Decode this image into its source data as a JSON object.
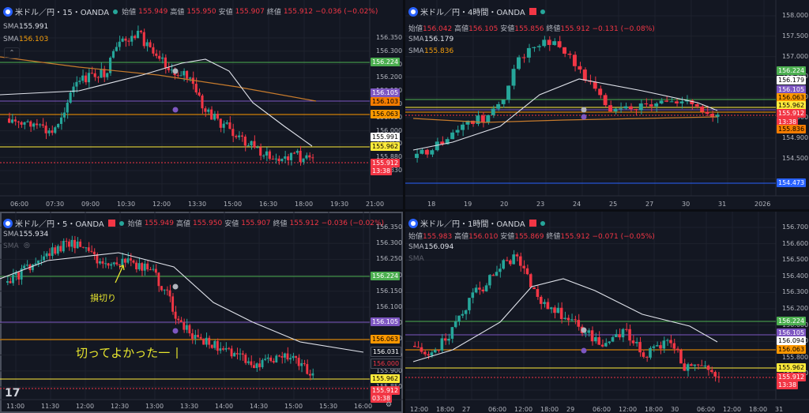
{
  "panels": [
    {
      "symbol": "米ドル／円・15・OANDA",
      "ohlc_row": 1,
      "open_label": "始値",
      "open": "155.949",
      "high_label": "高値",
      "high": "155.950",
      "low_label": "安値",
      "low": "155.907",
      "close_label": "終値",
      "close": "155.912",
      "change": "−0.036 (−0.02%)",
      "sma1_label": "SMA",
      "sma1_value": "155.991",
      "sma2_label": "SMA",
      "sma2_value": "156.103",
      "price_ticks": [
        "156.350",
        "156.300",
        "156.250",
        "156.200",
        "156.150",
        "156.100",
        "156.050",
        "156.000",
        "155.930",
        "155.880",
        "155.830"
      ],
      "time_ticks": [
        "06:00",
        "07:30",
        "09:00",
        "10:30",
        "12:00",
        "13:30",
        "15:00",
        "16:30",
        "18:00",
        "19:30",
        "21:00"
      ],
      "tags": [
        {
          "text": "156.224",
          "bg": "#4caf50",
          "fg": "#ffffff"
        },
        {
          "text": "156.105",
          "bg": "#7e57c2",
          "fg": "#ffffff"
        },
        {
          "text": "156.103",
          "bg": "#f57c00",
          "fg": "#000000"
        },
        {
          "text": "156.063",
          "bg": "#ff9800",
          "fg": "#000000"
        },
        {
          "text": "155.991",
          "bg": "#ffffff",
          "fg": "#000000"
        },
        {
          "text": "155.962",
          "bg": "#ffeb3b",
          "fg": "#000000"
        },
        {
          "text": "155.912",
          "bg": "#f23645",
          "fg": "#ffffff"
        },
        {
          "text": "13:38",
          "bg": "#f23645",
          "fg": "#ffffff"
        }
      ]
    },
    {
      "symbol": "米ドル／円・4時間・OANDA",
      "open_label": "始値",
      "open": "156.042",
      "high_label": "高値",
      "high": "156.105",
      "low_label": "安値",
      "low": "155.856",
      "close_label": "終値",
      "close": "155.912",
      "change": "−0.131 (−0.08%)",
      "sma1_label": "SMA",
      "sma1_value": "156.179",
      "sma2_label": "SMA",
      "sma2_value": "155.836",
      "price_ticks": [
        "158.000",
        "157.500",
        "157.000",
        "156.500",
        "156.000",
        "155.300",
        "154.900",
        "154.500"
      ],
      "time_ticks": [
        "18",
        "19",
        "20",
        "23",
        "24",
        "25",
        "27",
        "30",
        "31",
        "2026"
      ],
      "tags": [
        {
          "text": "156.224",
          "bg": "#4caf50",
          "fg": "#ffffff"
        },
        {
          "text": "156.179",
          "bg": "#ffffff",
          "fg": "#000000"
        },
        {
          "text": "156.105",
          "bg": "#7e57c2",
          "fg": "#ffffff"
        },
        {
          "text": "156.063",
          "bg": "#ff9800",
          "fg": "#000000"
        },
        {
          "text": "155.962",
          "bg": "#ffeb3b",
          "fg": "#000000"
        },
        {
          "text": "155.912",
          "bg": "#f23645",
          "fg": "#ffffff"
        },
        {
          "text": "13:38",
          "bg": "#f23645",
          "fg": "#ffffff"
        },
        {
          "text": "155.836",
          "bg": "#f57c00",
          "fg": "#000000"
        },
        {
          "text": "154.473",
          "bg": "#2962ff",
          "fg": "#ffffff"
        }
      ]
    },
    {
      "symbol": "米ドル／円・5・OANDA",
      "open_label": "始値",
      "open": "155.949",
      "high_label": "高値",
      "high": "155.950",
      "low_label": "安値",
      "low": "155.907",
      "close_label": "終値",
      "close": "155.912",
      "change": "−0.036 (−0.02%)",
      "sma1_label": "SMA",
      "sma1_value": "155.934",
      "sma2_label": "SMA",
      "price_ticks": [
        "156.350",
        "156.300",
        "156.250",
        "156.200",
        "156.150",
        "156.100",
        "156.050",
        "156.000",
        "155.950",
        "155.900",
        "155.850"
      ],
      "time_ticks": [
        "11:00",
        "11:30",
        "12:00",
        "12:30",
        "13:00",
        "13:30",
        "14:00",
        "14:30",
        "15:00",
        "15:30",
        "16:00"
      ],
      "tags": [
        {
          "text": "156.224",
          "bg": "#4caf50",
          "fg": "#ffffff"
        },
        {
          "text": "156.105",
          "bg": "#7e57c2",
          "fg": "#ffffff"
        },
        {
          "text": "156.063",
          "bg": "#ff9800",
          "fg": "#000000"
        },
        {
          "text": "156.031",
          "bg": "#131722",
          "fg": "#ffffff"
        },
        {
          "text": "156.000",
          "bg": "#131722",
          "fg": "#f23645"
        },
        {
          "text": "155.962",
          "bg": "#ffeb3b",
          "fg": "#000000"
        },
        {
          "text": "155.912",
          "bg": "#f23645",
          "fg": "#ffffff"
        },
        {
          "text": "03:38",
          "bg": "#f23645",
          "fg": "#ffffff"
        }
      ],
      "annotation_1": "損切り",
      "annotation_2": "切ってよかった一"
    },
    {
      "symbol": "米ドル／円・1時間・OANDA",
      "open_label": "始値",
      "open": "155.983",
      "high_label": "高値",
      "high": "156.010",
      "low_label": "安値",
      "low": "155.869",
      "close_label": "終値",
      "close": "155.912",
      "change": "−0.071 (−0.05%)",
      "sma1_label": "SMA",
      "sma1_value": "156.094",
      "sma2_label": "SMA",
      "price_ticks": [
        "156.700",
        "156.600",
        "156.500",
        "156.400",
        "156.300",
        "156.200",
        "156.000",
        "155.900",
        "155.800",
        "155.700"
      ],
      "time_ticks": [
        "12:00",
        "18:00",
        "27",
        "06:00",
        "12:00",
        "18:00",
        "29",
        "06:00",
        "12:00",
        "18:00",
        "30",
        "06:00",
        "12:00",
        "18:00",
        "31"
      ],
      "tags": [
        {
          "text": "156.224",
          "bg": "#4caf50",
          "fg": "#ffffff"
        },
        {
          "text": "156.105",
          "bg": "#7e57c2",
          "fg": "#ffffff"
        },
        {
          "text": "156.094",
          "bg": "#ffffff",
          "fg": "#000000"
        },
        {
          "text": "156.063",
          "bg": "#ff9800",
          "fg": "#000000"
        },
        {
          "text": "155.962",
          "bg": "#ffeb3b",
          "fg": "#000000"
        },
        {
          "text": "155.912",
          "bg": "#f23645",
          "fg": "#ffffff"
        },
        {
          "text": "13:38",
          "bg": "#f23645",
          "fg": "#ffffff"
        }
      ]
    }
  ],
  "colors": {
    "up": "#26a69a",
    "down": "#f23645",
    "bg": "#131722",
    "grid": "#1e222d",
    "sma_white": "#e0e3eb",
    "sma_orange": "#c77b2c",
    "annotation": "#e8e62e"
  }
}
